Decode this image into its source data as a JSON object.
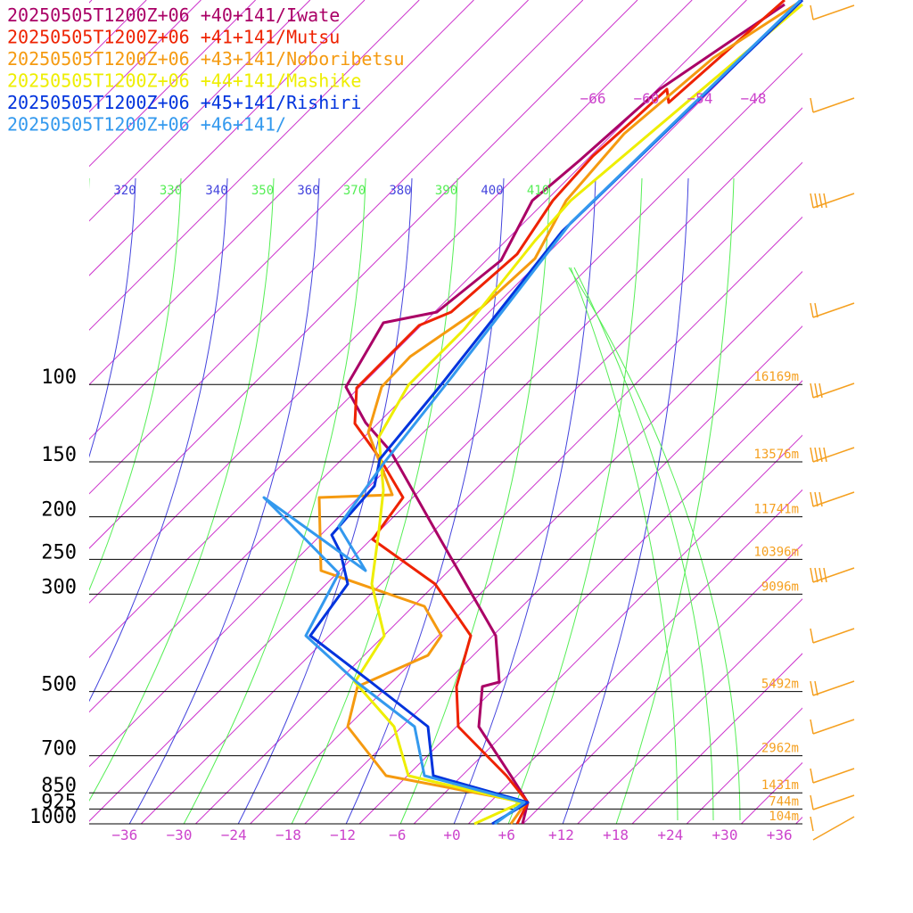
{
  "chart_data": {
    "type": "skew-t",
    "colors": {
      "isotherm": "#cc33cc",
      "isobar": "#000000",
      "theta_green": "#55ee55",
      "theta_blue": "#4444dd",
      "height_label": "#f5a020",
      "barb": "#f5a020"
    },
    "legend": [
      {
        "label": "20250505T1200Z+06 +40+141/Iwate",
        "color": "#aa0066"
      },
      {
        "label": "20250505T1200Z+06 +41+141/Mutsu",
        "color": "#ee2200"
      },
      {
        "label": "20250505T1200Z+06 +43+141/Noboribetsu",
        "color": "#f59a10"
      },
      {
        "label": "20250505T1200Z+06 +44+141/Mashike",
        "color": "#eeee00"
      },
      {
        "label": "20250505T1200Z+06 +45+141/Rishiri",
        "color": "#0033dd"
      },
      {
        "label": "20250505T1200Z+06 +46+141/",
        "color": "#3399ee"
      }
    ],
    "pressure_levels": [
      {
        "label": "100",
        "height": "16169m"
      },
      {
        "label": "150",
        "height": "13576m"
      },
      {
        "label": "200",
        "height": "11741m"
      },
      {
        "label": "250",
        "height": "10396m"
      },
      {
        "label": "300",
        "height": "9096m"
      },
      {
        "label": "500",
        "height": "5492m"
      },
      {
        "label": "700",
        "height": "2962m"
      },
      {
        "label": "850",
        "height": "1431m"
      },
      {
        "label": "925",
        "height": "744m"
      },
      {
        "label": "1000",
        "height": "104m"
      }
    ],
    "temperature_ticks": [
      "−36",
      "−30",
      "−24",
      "−18",
      "−12",
      "−6",
      "+0",
      "+6",
      "+12",
      "+18",
      "+24",
      "+30",
      "+36"
    ],
    "upper_temp_labels": [
      "−66",
      "−60",
      "−54",
      "−48"
    ],
    "theta_labels": [
      "320",
      "330",
      "340",
      "350",
      "360",
      "370",
      "380",
      "390",
      "400",
      "410"
    ]
  }
}
